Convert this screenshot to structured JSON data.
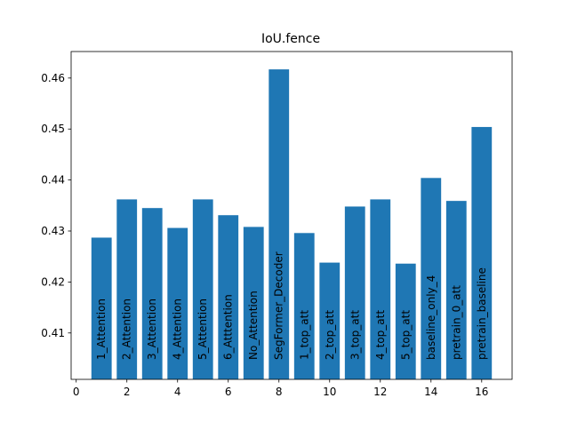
{
  "chart_data": {
    "type": "bar",
    "title": "IoU.fence",
    "x": [
      1,
      2,
      3,
      4,
      5,
      6,
      7,
      8,
      9,
      10,
      11,
      12,
      13,
      14,
      15,
      16
    ],
    "bar_labels": [
      "1_Attention",
      "2_Attention",
      "3_Attention",
      "4_Attention",
      "5_Attention",
      "6_Atttention",
      "No_Attention",
      "SegFormer_Decoder",
      "1_top_att",
      "2_top_att",
      "3_top_att",
      "4_top_att",
      "5_top_att",
      "baseline_only_4",
      "pretrain_0_att",
      "pretrain_baseline"
    ],
    "values": [
      0.4287,
      0.4362,
      0.4345,
      0.4306,
      0.4362,
      0.4331,
      0.4308,
      0.4617,
      0.4296,
      0.4238,
      0.4348,
      0.4362,
      0.4236,
      0.4404,
      0.4359,
      0.4504
    ],
    "color": "#1f77b4",
    "xlim": [
      -0.2,
      17.2
    ],
    "xticks": [
      0,
      2,
      4,
      6,
      8,
      10,
      12,
      14,
      16
    ],
    "ylim": [
      0.4009,
      0.4652
    ],
    "yticks": [
      0.41,
      0.42,
      0.43,
      0.44,
      0.45,
      0.46
    ]
  }
}
